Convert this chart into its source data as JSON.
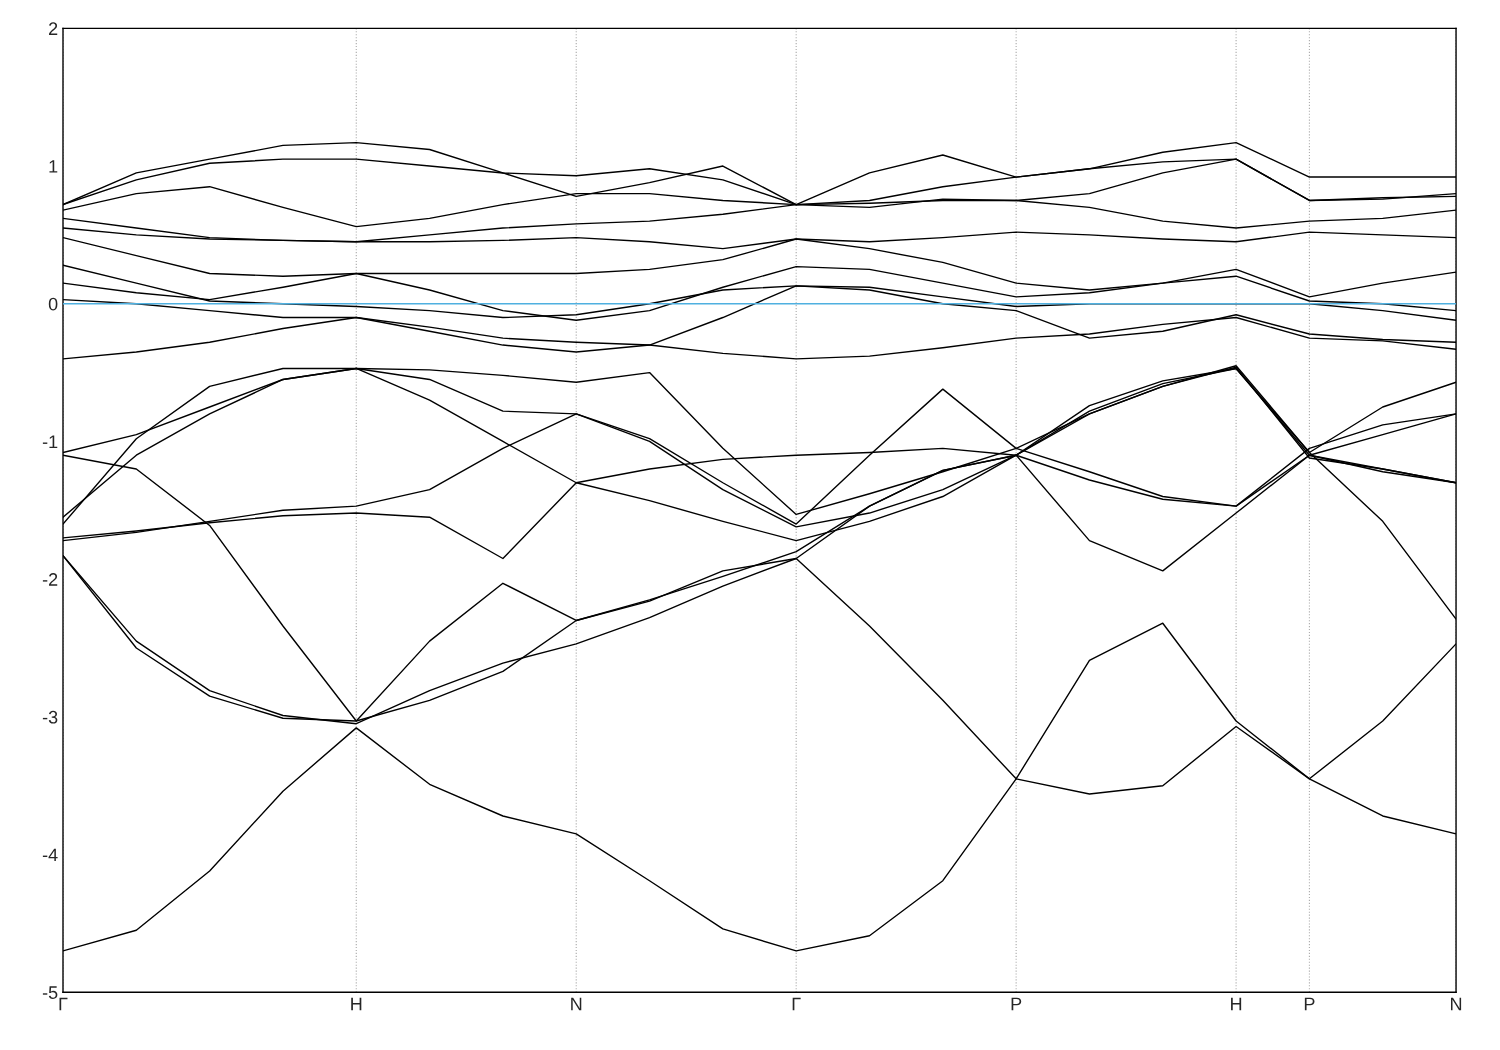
{
  "chart_data": {
    "type": "line",
    "categories": [
      "Γ",
      null,
      null,
      null,
      "H",
      null,
      null,
      "N",
      null,
      null,
      "Γ",
      null,
      null,
      "P",
      null,
      null,
      "H",
      "P",
      null,
      "N"
    ],
    "ylim": [
      -5,
      2
    ],
    "yticks": [
      -5,
      -4,
      -3,
      -2,
      -1,
      0,
      1,
      2
    ],
    "grid": "x",
    "line_style": "solid",
    "ref_lines": [
      {
        "axis": "y",
        "value": 0,
        "color": "#4fb0e0"
      }
    ],
    "series": [
      {
        "color": "#000000",
        "values": [
          -4.7,
          -4.55,
          -4.12,
          -3.54,
          -3.08,
          -3.49,
          -3.72,
          -3.85,
          -4.19,
          -4.54,
          -4.7,
          -4.59,
          -4.19,
          -3.45,
          -3.56,
          -3.5,
          -3.07,
          -3.45,
          -3.72,
          -3.85
        ]
      },
      {
        "color": "#000000",
        "values": [
          -1.83,
          -2.45,
          -2.81,
          -2.99,
          -3.05,
          -2.81,
          -2.61,
          -2.47,
          -2.28,
          -2.05,
          -1.85,
          -2.34,
          -2.88,
          -3.45,
          -2.59,
          -2.32,
          -3.03,
          -3.45,
          -3.03,
          -2.47
        ]
      },
      {
        "color": "#000000",
        "values": [
          -1.83,
          -2.5,
          -2.85,
          -3.01,
          -3.03,
          -2.45,
          -2.03,
          -2.3,
          -2.16,
          -1.94,
          -1.85,
          -1.47,
          -1.21,
          -1.1,
          -0.74,
          -0.56,
          -0.47,
          -1.08,
          -1.58,
          -2.29
        ]
      },
      {
        "color": "#000000",
        "values": [
          -1.1,
          -1.2,
          -1.61,
          -2.34,
          -3.03,
          -2.88,
          -2.67,
          -2.3,
          -2.15,
          -1.98,
          -1.8,
          -1.47,
          -1.21,
          -1.1,
          -1.72,
          -1.94,
          -1.52,
          -1.1,
          -1.22,
          -1.3
        ]
      },
      {
        "color": "#000000",
        "values": [
          -1.7,
          -1.65,
          -1.59,
          -1.54,
          -1.52,
          -1.55,
          -1.85,
          -1.3,
          -1.43,
          -1.58,
          -1.72,
          -1.58,
          -1.4,
          -1.1,
          -0.78,
          -0.58,
          -0.47,
          -1.1,
          -0.95,
          -0.8
        ]
      },
      {
        "color": "#000000",
        "values": [
          -1.6,
          -0.98,
          -0.6,
          -0.47,
          -0.47,
          -0.55,
          -0.78,
          -0.8,
          -0.98,
          -1.3,
          -1.6,
          -1.1,
          -0.62,
          -1.05,
          -1.22,
          -1.4,
          -1.47,
          -1.05,
          -0.88,
          -0.8
        ]
      },
      {
        "color": "#000000",
        "values": [
          -1.55,
          -1.1,
          -0.8,
          -0.55,
          -0.47,
          -0.48,
          -0.52,
          -0.57,
          -0.5,
          -1.05,
          -1.53,
          -1.38,
          -1.22,
          -1.05,
          -0.8,
          -0.6,
          -0.45,
          -1.08,
          -0.75,
          -0.57
        ]
      },
      {
        "color": "#000000",
        "values": [
          -1.08,
          -0.95,
          -0.75,
          -0.55,
          -0.47,
          -0.7,
          -1.0,
          -1.3,
          -1.2,
          -1.13,
          -1.1,
          -1.08,
          -1.05,
          -1.1,
          -1.28,
          -1.42,
          -1.47,
          -1.1,
          -1.2,
          -1.3
        ]
      },
      {
        "color": "#000000",
        "values": [
          -1.72,
          -1.66,
          -1.58,
          -1.5,
          -1.47,
          -1.35,
          -1.05,
          -0.8,
          -1.0,
          -1.35,
          -1.62,
          -1.52,
          -1.35,
          -1.1,
          -0.8,
          -0.6,
          -0.46,
          -1.12,
          -1.2,
          -1.3
        ]
      },
      {
        "color": "#000000",
        "values": [
          -0.4,
          -0.35,
          -0.28,
          -0.18,
          -0.1,
          -0.17,
          -0.25,
          -0.28,
          -0.3,
          -0.36,
          -0.4,
          -0.38,
          -0.32,
          -0.25,
          -0.22,
          -0.15,
          -0.1,
          -0.25,
          -0.27,
          -0.33
        ]
      },
      {
        "color": "#000000",
        "values": [
          0.03,
          0.0,
          -0.05,
          -0.1,
          -0.1,
          -0.2,
          -0.3,
          -0.35,
          -0.3,
          -0.1,
          0.13,
          0.1,
          0.0,
          -0.05,
          -0.25,
          -0.2,
          -0.08,
          -0.22,
          -0.26,
          -0.28
        ]
      },
      {
        "color": "#000000",
        "values": [
          0.15,
          0.08,
          0.03,
          0.12,
          0.22,
          0.1,
          -0.05,
          -0.12,
          -0.05,
          0.12,
          0.27,
          0.25,
          0.15,
          0.05,
          0.08,
          0.15,
          0.25,
          0.05,
          0.15,
          0.23
        ]
      },
      {
        "color": "#000000",
        "values": [
          0.28,
          0.15,
          0.02,
          0.0,
          -0.02,
          -0.05,
          -0.1,
          -0.08,
          0.0,
          0.1,
          0.13,
          0.12,
          0.05,
          -0.02,
          0.0,
          0.0,
          0.0,
          0.0,
          -0.05,
          -0.12
        ]
      },
      {
        "color": "#000000",
        "values": [
          0.48,
          0.35,
          0.22,
          0.2,
          0.22,
          0.22,
          0.22,
          0.22,
          0.25,
          0.32,
          0.47,
          0.4,
          0.3,
          0.15,
          0.1,
          0.15,
          0.2,
          0.02,
          0.0,
          -0.05
        ]
      },
      {
        "color": "#000000",
        "values": [
          0.55,
          0.5,
          0.47,
          0.46,
          0.45,
          0.45,
          0.46,
          0.48,
          0.45,
          0.4,
          0.47,
          0.45,
          0.48,
          0.52,
          0.5,
          0.47,
          0.45,
          0.52,
          0.5,
          0.48
        ]
      },
      {
        "color": "#000000",
        "values": [
          0.62,
          0.55,
          0.48,
          0.46,
          0.45,
          0.5,
          0.55,
          0.58,
          0.6,
          0.65,
          0.72,
          0.7,
          0.76,
          0.75,
          0.7,
          0.6,
          0.55,
          0.6,
          0.62,
          0.68
        ]
      },
      {
        "color": "#000000",
        "values": [
          0.68,
          0.8,
          0.85,
          0.7,
          0.56,
          0.62,
          0.72,
          0.8,
          0.8,
          0.75,
          0.72,
          0.73,
          0.75,
          0.75,
          0.8,
          0.95,
          1.05,
          0.75,
          0.77,
          0.78
        ]
      },
      {
        "color": "#000000",
        "values": [
          0.72,
          0.9,
          1.02,
          1.05,
          1.05,
          1.0,
          0.95,
          0.93,
          0.98,
          0.9,
          0.72,
          0.95,
          1.08,
          0.92,
          0.98,
          1.1,
          1.17,
          0.92,
          0.92,
          0.92
        ]
      },
      {
        "color": "#000000",
        "values": [
          0.72,
          0.95,
          1.05,
          1.15,
          1.17,
          1.12,
          0.95,
          0.78,
          0.88,
          1.0,
          0.72,
          0.75,
          0.85,
          0.92,
          0.98,
          1.03,
          1.05,
          0.75,
          0.76,
          0.8
        ]
      }
    ]
  }
}
